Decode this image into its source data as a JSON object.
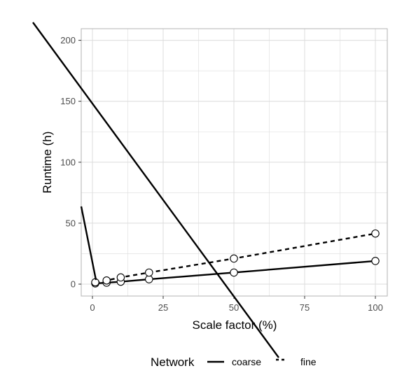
{
  "chart_data": {
    "type": "line",
    "xlabel": "Scale factor (%)",
    "ylabel": "Runtime (h)",
    "xlim": [
      -4,
      104
    ],
    "ylim": [
      -10,
      210
    ],
    "x_ticks": [
      0,
      25,
      50,
      75,
      100
    ],
    "y_ticks": [
      0,
      50,
      100,
      150,
      200
    ],
    "grid": true,
    "legend": {
      "title": "Network",
      "position": "bottom",
      "entries": [
        {
          "label": "coarse",
          "linetype": "solid"
        },
        {
          "label": "fine",
          "linetype": "dashed"
        }
      ]
    },
    "series": [
      {
        "name": "coarse",
        "linetype": "solid",
        "x": [
          1,
          5,
          10,
          20,
          50,
          100
        ],
        "y": [
          0.6,
          1.2,
          2.0,
          4.0,
          9.5,
          19.0
        ]
      },
      {
        "name": "fine",
        "linetype": "dashed",
        "x": [
          1,
          5,
          10,
          20,
          50,
          100
        ],
        "y": [
          1.5,
          3.0,
          5.5,
          9.5,
          21.0,
          41.5
        ]
      }
    ],
    "colors": {
      "panel_border": "#b3b3b3",
      "grid": "#dcdcdc",
      "line": "#000000",
      "point_fill": "#ffffff"
    }
  }
}
